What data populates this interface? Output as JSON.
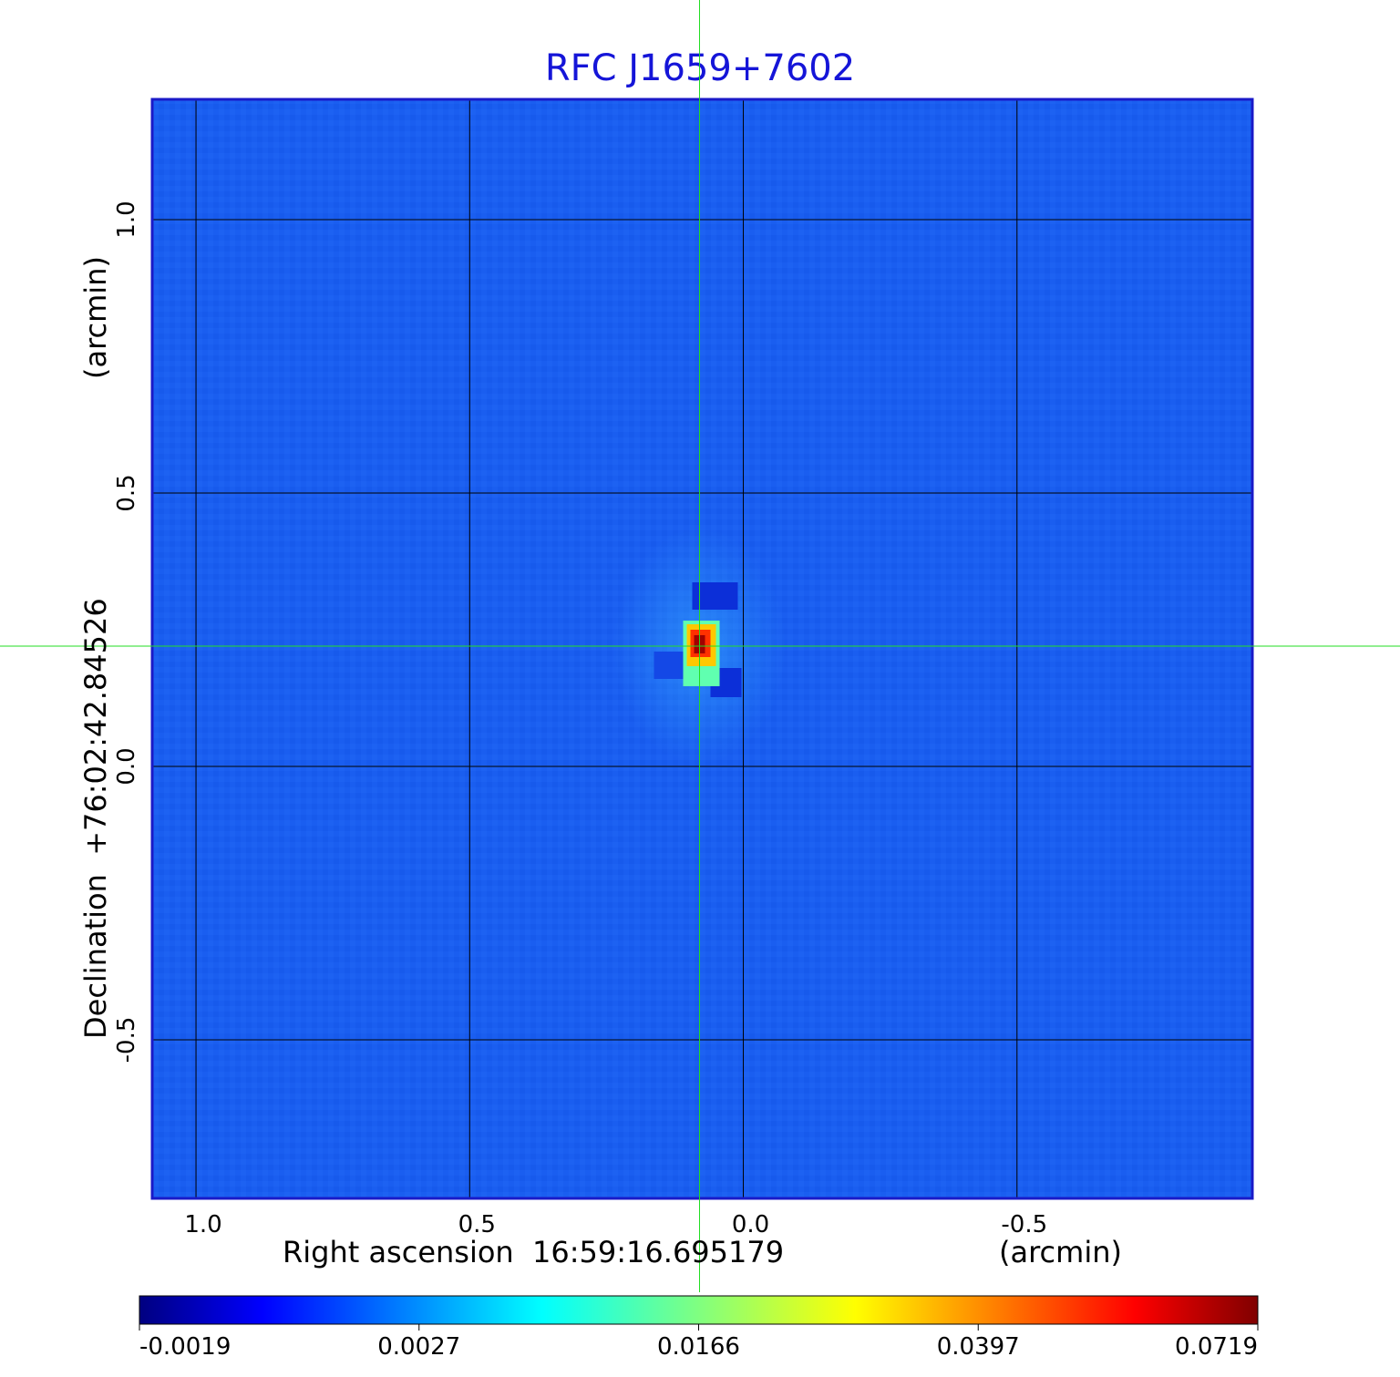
{
  "chart_data": {
    "type": "heatmap",
    "title": "RFC J1659+7602",
    "xlabel": "Right ascension  16:59:16.695179",
    "xunit": "(arcmin)",
    "ylabel": "Declination  +76:02:42.84526",
    "yunit": "(arcmin)",
    "x_ticks": [
      "1.0",
      "0.5",
      "0.0",
      "-0.5"
    ],
    "x_tick_values": [
      1.0,
      0.5,
      0.0,
      -0.5
    ],
    "y_ticks": [
      "1.0",
      "0.5",
      "0.0",
      "-0.5"
    ],
    "y_tick_values": [
      1.0,
      0.5,
      0.0,
      -0.5
    ],
    "xlim": [
      1.08,
      -0.93
    ],
    "ylim": [
      -0.79,
      1.22
    ],
    "grid": true,
    "crosshair": {
      "x": 0.08,
      "y": 0.22,
      "color": "#22dd22"
    },
    "colormap": "jet",
    "colorbar": {
      "tick_labels": [
        "-0.0019",
        "0.0027",
        "0.0166",
        "0.0397",
        "0.0719"
      ],
      "values": [
        -0.0019,
        0.0027,
        0.0166,
        0.0397,
        0.0719
      ]
    },
    "background_level": 0.001,
    "source": {
      "ra_offset": 0.08,
      "dec_offset": 0.22,
      "peak": 0.0719
    }
  },
  "colors": {
    "title": "#1515d8",
    "frame": "#1a1ac8",
    "grid": "#000000",
    "background_map": "#1a5ef0"
  }
}
